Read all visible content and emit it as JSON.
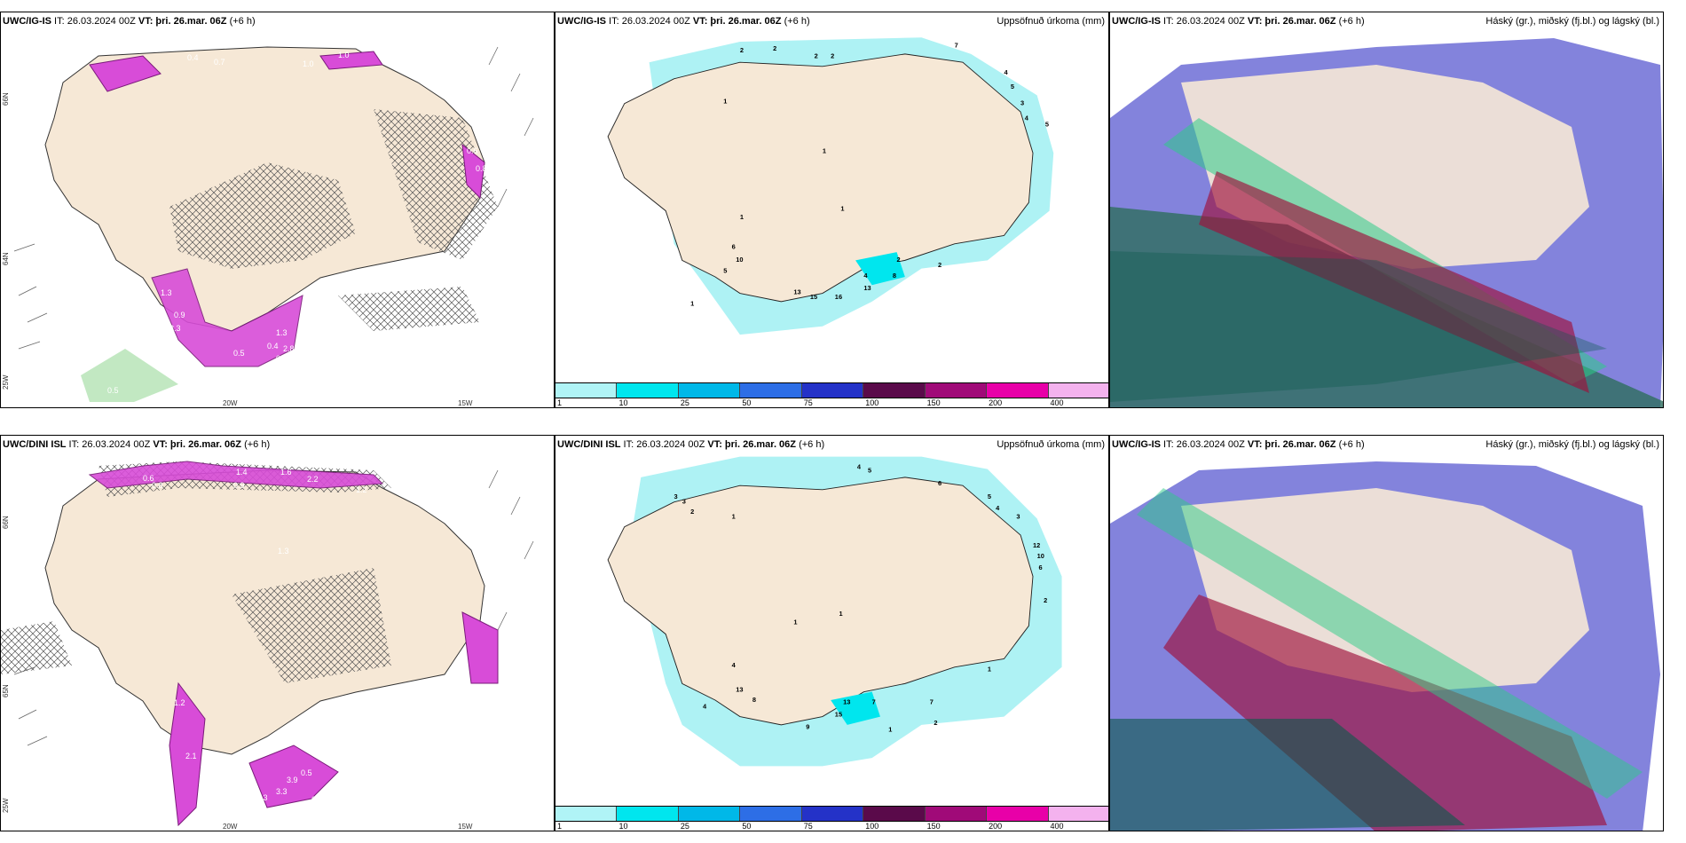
{
  "panels": {
    "p1": {
      "model": "UWC/IG-IS",
      "rest": " IT: 26.03.2024 00Z ",
      "vt": "VT: þri. 26.mar. 06Z",
      "lead": " (+6 h)",
      "right": ""
    },
    "p2": {
      "model": "UWC/IG-IS",
      "rest": " IT: 26.03.2024 00Z ",
      "vt": "VT: þri. 26.mar. 06Z",
      "lead": " (+6 h)",
      "right": "Uppsöfnuð úrkoma (mm)"
    },
    "p3": {
      "model": "UWC/IG-IS",
      "rest": " IT: 26.03.2024 00Z ",
      "vt": "VT: þri. 26.mar. 06Z",
      "lead": " (+6 h)",
      "right": "Háský (gr.), miðský (fj.bl.) og lágský (bl.)"
    },
    "p4": {
      "model": "UWC/DINI ISL",
      "rest": " IT: 26.03.2024 00Z ",
      "vt": "VT: þri. 26.mar. 06Z",
      "lead": " (+6 h)",
      "right": ""
    },
    "p5": {
      "model": "UWC/DINI ISL",
      "rest": " IT: 26.03.2024 00Z ",
      "vt": "VT: þri. 26.mar. 06Z",
      "lead": " (+6 h)",
      "right": "Uppsöfnuð úrkoma (mm)"
    },
    "p6": {
      "model": "UWC/IG-IS",
      "rest": " IT: 26.03.2024 00Z ",
      "vt": "VT: þri. 26.mar. 06Z",
      "lead": " (+6 h)",
      "right": "Háský (gr.), miðský (fj.bl.) og lágský (bl.)"
    }
  },
  "axis_labels": {
    "lat66": "66N",
    "lat64": "64N",
    "lat65": "65N",
    "lon20": "20W",
    "lon15": "15W",
    "lon25": "25W"
  },
  "colorbar": {
    "ticks": [
      "1",
      "10",
      "25",
      "50",
      "75",
      "100",
      "150",
      "200",
      "400"
    ],
    "colors": [
      "#b0f4f6",
      "#00e6ee",
      "#00b8e8",
      "#2d6ee6",
      "#2432c8",
      "#5a0a4a",
      "#a00a78",
      "#e800a8",
      "#f4b2ee"
    ]
  },
  "precip_values_top": [
    "2",
    "2",
    "2",
    "2",
    "7",
    "4",
    "5",
    "3",
    "4",
    "5",
    "1",
    "1",
    "1",
    "6",
    "10",
    "5",
    "2",
    "13",
    "15",
    "16",
    "4",
    "13",
    "8",
    "1",
    "2",
    "1"
  ],
  "precip_values_bottom": [
    "4",
    "5",
    "3",
    "3",
    "2",
    "1",
    "6",
    "5",
    "4",
    "3",
    "12",
    "10",
    "6",
    "2",
    "1",
    "1",
    "4",
    "13",
    "8",
    "13",
    "15",
    "7",
    "7",
    "2",
    "1",
    "4",
    "9",
    "1"
  ],
  "snow_values_top": [
    "0.4",
    "0.7",
    "1.0",
    "1.0",
    "0.6",
    "0.8",
    "1.3",
    "0.9",
    "0.4",
    "0.5",
    "1.3",
    "0.5",
    "3.3",
    "0.4",
    "2.8",
    "0.4",
    "1.3",
    "1.1",
    "0.5",
    "0.5"
  ],
  "snow_values_bottom": [
    "0.6",
    "1.4",
    "1.6",
    "2.2",
    "0.8",
    "0.9",
    "1.2",
    "1.3",
    "0.3",
    "1.2",
    "3.3",
    "3.9",
    "3.3",
    "0.8",
    "2.1",
    "0.5",
    "0.3"
  ],
  "colors": {
    "land": "#f6e8d6",
    "sea": "#ffffff",
    "precip_light": "#aef2f4",
    "snow_magenta": "#d84cd8",
    "snow_dark": "#7a1a7a"
  }
}
